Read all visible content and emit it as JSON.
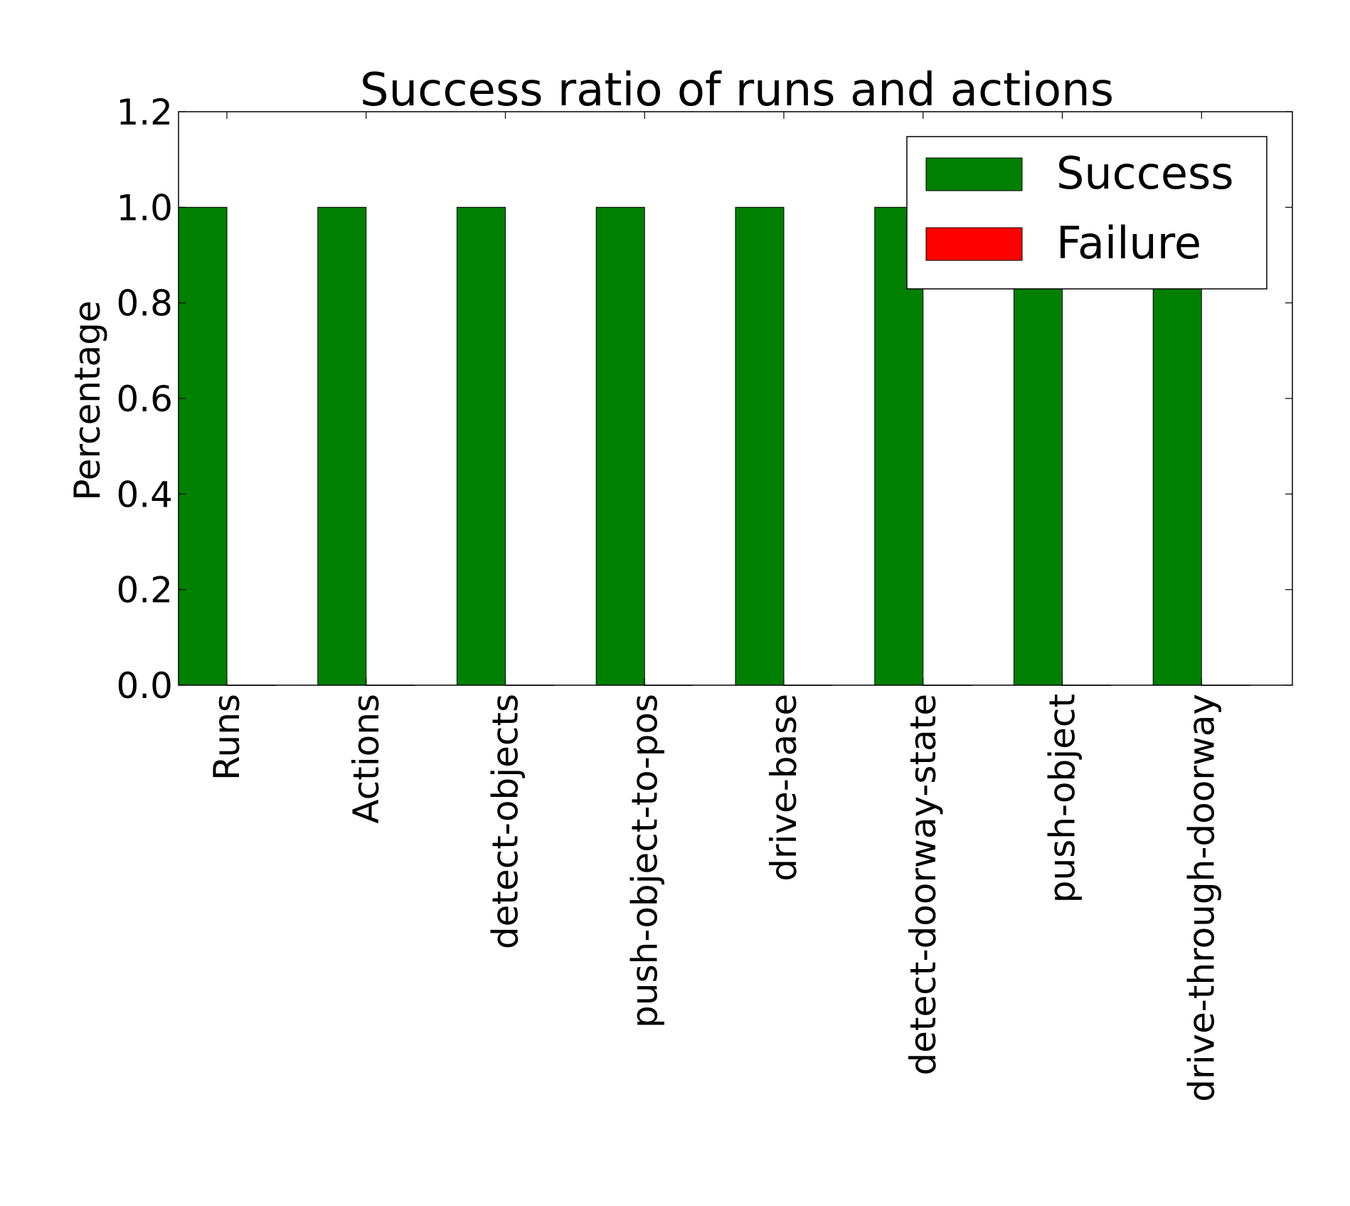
{
  "chart_data": {
    "type": "bar",
    "title": "Success ratio of runs and actions",
    "xlabel": "",
    "ylabel": "Percentage",
    "categories": [
      "Runs",
      "Actions",
      "detect-objects",
      "push-object-to-pos",
      "drive-base",
      "detect-doorway-state",
      "push-object",
      "drive-through-doorway"
    ],
    "series": [
      {
        "name": "Success",
        "color": "#008000",
        "values": [
          1.0,
          1.0,
          1.0,
          1.0,
          1.0,
          1.0,
          1.0,
          1.0
        ]
      },
      {
        "name": "Failure",
        "color": "#ff0000",
        "values": [
          0.0,
          0.0,
          0.0,
          0.0,
          0.0,
          0.0,
          0.0,
          0.0
        ]
      }
    ],
    "ylim": [
      0.0,
      1.2
    ],
    "yticks": [
      "0.0",
      "0.2",
      "0.4",
      "0.6",
      "0.8",
      "1.0",
      "1.2"
    ],
    "grid": false,
    "legend_position": "top-right"
  }
}
